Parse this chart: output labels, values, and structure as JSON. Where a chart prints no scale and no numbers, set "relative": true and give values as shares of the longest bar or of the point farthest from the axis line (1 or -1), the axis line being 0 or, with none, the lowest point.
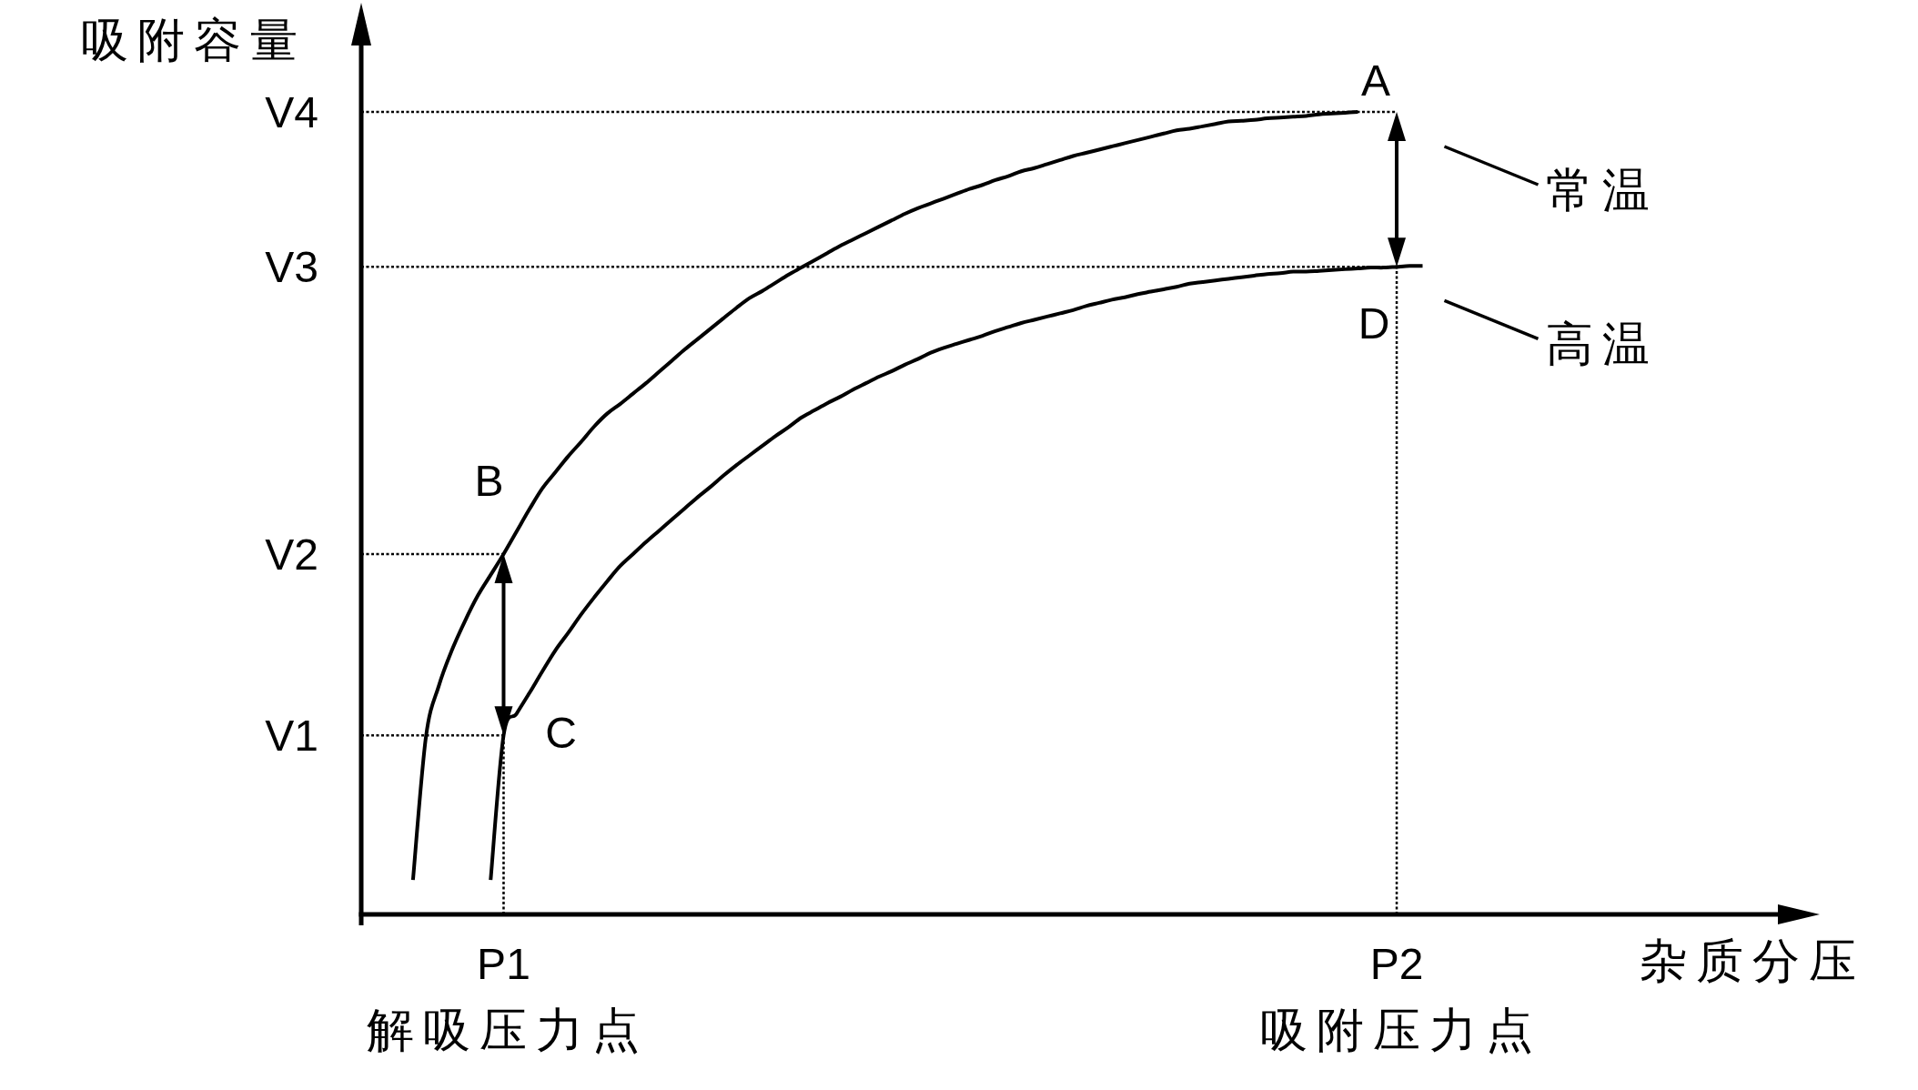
{
  "chart_data": {
    "type": "line",
    "relative": true,
    "legend": "right",
    "xlabel": "杂质分压",
    "ylabel": "吸附容量",
    "categories": [
      null,
      null,
      null,
      null,
      null,
      null,
      null,
      null,
      null,
      null,
      null,
      "P1",
      null,
      null,
      null,
      null,
      null,
      null,
      null,
      null,
      null,
      null,
      null,
      null,
      null,
      null,
      null,
      null,
      null,
      null,
      null,
      null,
      null,
      null,
      null,
      null,
      null,
      null,
      null,
      null,
      null,
      null,
      null,
      null,
      null,
      null,
      null,
      null,
      null,
      null,
      null,
      null,
      null,
      null,
      null,
      null,
      null,
      null,
      null,
      null,
      null,
      null,
      null,
      null,
      null,
      null,
      null,
      null,
      null,
      null,
      null,
      null,
      null,
      null,
      null,
      null,
      null,
      null,
      null,
      null,
      "P2",
      null,
      null
    ],
    "series": [
      {
        "name": "常温",
        "color": "#000000",
        "values": [
          null,
          null,
          null,
          null,
          0.043,
          0.221,
          0.285,
          0.329,
          0.365,
          0.397,
          0.423,
          0.449,
          0.477,
          0.505,
          0.531,
          0.551,
          0.571,
          0.589,
          0.608,
          0.624,
          0.636,
          0.649,
          0.662,
          0.676,
          0.69,
          0.704,
          0.717,
          0.73,
          0.743,
          0.756,
          0.768,
          0.777,
          0.787,
          0.797,
          0.806,
          0.815,
          0.824,
          0.833,
          0.841,
          0.849,
          0.857,
          0.865,
          0.873,
          0.88,
          0.886,
          0.892,
          0.898,
          0.904,
          0.909,
          0.915,
          0.92,
          0.926,
          0.93,
          0.935,
          0.94,
          0.945,
          0.949,
          0.953,
          0.957,
          0.961,
          0.965,
          0.969,
          0.973,
          0.977,
          0.979,
          0.982,
          0.985,
          0.988,
          0.989,
          0.99,
          0.992,
          0.993,
          0.994,
          0.995,
          0.997,
          0.998,
          0.999,
          1.0,
          null,
          null,
          null,
          null,
          null
        ]
      },
      {
        "name": "高温",
        "color": "#000000",
        "values": [
          null,
          null,
          null,
          null,
          null,
          null,
          null,
          null,
          null,
          null,
          0.043,
          0.223,
          0.25,
          0.276,
          0.303,
          0.329,
          0.351,
          0.374,
          0.395,
          0.415,
          0.434,
          0.449,
          0.464,
          0.478,
          0.492,
          0.506,
          0.52,
          0.533,
          0.547,
          0.56,
          0.572,
          0.584,
          0.596,
          0.607,
          0.619,
          0.628,
          0.637,
          0.645,
          0.654,
          0.662,
          0.67,
          0.677,
          0.685,
          0.692,
          0.7,
          0.706,
          0.711,
          0.716,
          0.721,
          0.727,
          0.732,
          0.737,
          0.741,
          0.745,
          0.749,
          0.753,
          0.758,
          0.762,
          0.766,
          0.769,
          0.773,
          0.776,
          0.779,
          0.782,
          0.786,
          0.788,
          0.79,
          0.792,
          0.794,
          0.796,
          0.798,
          0.799,
          0.801,
          0.801,
          0.802,
          0.803,
          0.804,
          0.805,
          0.806,
          0.806,
          0.807,
          0.808,
          0.808
        ]
      },
      {
        "name": "V4",
        "color": "#000000",
        "line_style": "dotted",
        "values": [
          1.0,
          1.0,
          1.0,
          1.0,
          1.0,
          1.0,
          1.0,
          1.0,
          1.0,
          1.0,
          1.0,
          1.0,
          1.0,
          1.0,
          1.0,
          1.0,
          1.0,
          1.0,
          1.0,
          1.0,
          1.0,
          1.0,
          1.0,
          1.0,
          1.0,
          1.0,
          1.0,
          1.0,
          1.0,
          1.0,
          1.0,
          1.0,
          1.0,
          1.0,
          1.0,
          1.0,
          1.0,
          1.0,
          1.0,
          1.0,
          1.0,
          1.0,
          1.0,
          1.0,
          1.0,
          1.0,
          1.0,
          1.0,
          1.0,
          1.0,
          1.0,
          1.0,
          1.0,
          1.0,
          1.0,
          1.0,
          1.0,
          1.0,
          1.0,
          1.0,
          1.0,
          1.0,
          1.0,
          1.0,
          1.0,
          1.0,
          1.0,
          1.0,
          1.0,
          1.0,
          1.0,
          1.0,
          1.0,
          1.0,
          1.0,
          1.0,
          1.0,
          1.0,
          1.0,
          1.0,
          1.0,
          null,
          null
        ]
      },
      {
        "name": "V3",
        "color": "#000000",
        "line_style": "dotted",
        "values": [
          0.807,
          0.807,
          0.807,
          0.807,
          0.807,
          0.807,
          0.807,
          0.807,
          0.807,
          0.807,
          0.807,
          0.807,
          0.807,
          0.807,
          0.807,
          0.807,
          0.807,
          0.807,
          0.807,
          0.807,
          0.807,
          0.807,
          0.807,
          0.807,
          0.807,
          0.807,
          0.807,
          0.807,
          0.807,
          0.807,
          0.807,
          0.807,
          0.807,
          0.807,
          0.807,
          0.807,
          0.807,
          0.807,
          0.807,
          0.807,
          0.807,
          0.807,
          0.807,
          0.807,
          0.807,
          0.807,
          0.807,
          0.807,
          0.807,
          0.807,
          0.807,
          0.807,
          0.807,
          0.807,
          0.807,
          0.807,
          0.807,
          0.807,
          0.807,
          0.807,
          0.807,
          0.807,
          0.807,
          0.807,
          0.807,
          0.807,
          0.807,
          0.807,
          0.807,
          0.807,
          0.807,
          0.807,
          0.807,
          0.807,
          0.807,
          0.807,
          0.807,
          0.807,
          0.807,
          0.807,
          0.807,
          null,
          null
        ]
      },
      {
        "name": "V2",
        "color": "#000000",
        "line_style": "dotted",
        "values": [
          0.449,
          0.449,
          0.449,
          0.449,
          0.449,
          0.449,
          0.449,
          0.449,
          0.449,
          0.449,
          0.449,
          0.449,
          null,
          null,
          null,
          null,
          null,
          null,
          null,
          null,
          null,
          null,
          null,
          null,
          null,
          null,
          null,
          null,
          null,
          null,
          null,
          null,
          null,
          null,
          null,
          null,
          null,
          null,
          null,
          null,
          null,
          null,
          null,
          null,
          null,
          null,
          null,
          null,
          null,
          null,
          null,
          null,
          null,
          null,
          null,
          null,
          null,
          null,
          null,
          null,
          null,
          null,
          null,
          null,
          null,
          null,
          null,
          null,
          null,
          null,
          null,
          null,
          null,
          null,
          null,
          null,
          null,
          null,
          null,
          null,
          null,
          null,
          null
        ]
      },
      {
        "name": "V1",
        "color": "#000000",
        "line_style": "dotted",
        "values": [
          0.223,
          0.223,
          0.223,
          0.223,
          0.223,
          0.223,
          0.223,
          0.223,
          0.223,
          0.223,
          0.223,
          0.223,
          null,
          null,
          null,
          null,
          null,
          null,
          null,
          null,
          null,
          null,
          null,
          null,
          null,
          null,
          null,
          null,
          null,
          null,
          null,
          null,
          null,
          null,
          null,
          null,
          null,
          null,
          null,
          null,
          null,
          null,
          null,
          null,
          null,
          null,
          null,
          null,
          null,
          null,
          null,
          null,
          null,
          null,
          null,
          null,
          null,
          null,
          null,
          null,
          null,
          null,
          null,
          null,
          null,
          null,
          null,
          null,
          null,
          null,
          null,
          null,
          null,
          null,
          null,
          null,
          null,
          null,
          null,
          null,
          null,
          null,
          null
        ]
      }
    ],
    "ref_lines": [
      {
        "axis": "x",
        "value": "P1",
        "line_style": "dotted"
      },
      {
        "axis": "x",
        "value": "P2",
        "line_style": "dotted"
      }
    ],
    "annotations": [
      "B",
      "C",
      "A",
      "D",
      "解吸压力点",
      "吸附压力点"
    ]
  }
}
